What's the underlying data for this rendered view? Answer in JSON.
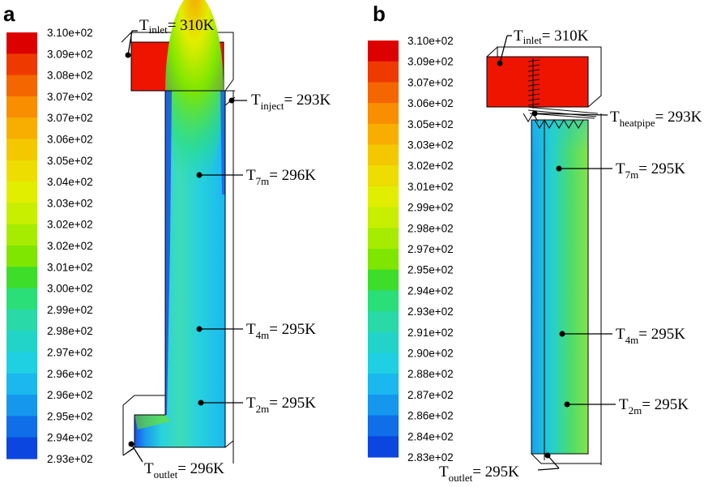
{
  "figure": {
    "panel_a": {
      "label": "a",
      "legend": {
        "ticks": [
          "3.10e+02",
          "3.09e+02",
          "3.08e+02",
          "3.07e+02",
          "3.07e+02",
          "3.06e+02",
          "3.05e+02",
          "3.04e+02",
          "3.03e+02",
          "3.02e+02",
          "3.02e+02",
          "3.01e+02",
          "3.00e+02",
          "2.99e+02",
          "2.98e+02",
          "2.97e+02",
          "2.96e+02",
          "2.96e+02",
          "2.95e+02",
          "2.94e+02",
          "2.93e+02"
        ]
      },
      "annotations": [
        {
          "id": "inlet",
          "main": "T",
          "sub": "inlet",
          "rest": "= 310K"
        },
        {
          "id": "inject",
          "main": "T",
          "sub": "inject",
          "rest": "= 293K"
        },
        {
          "id": "7m",
          "main": "T",
          "sub": "7m",
          "rest": "= 296K"
        },
        {
          "id": "4m",
          "main": "T",
          "sub": "4m",
          "rest": "= 295K"
        },
        {
          "id": "2m",
          "main": "T",
          "sub": "2m",
          "rest": "= 295K"
        },
        {
          "id": "outlet",
          "main": "T",
          "sub": "outlet",
          "rest": "= 296K"
        }
      ]
    },
    "panel_b": {
      "label": "b",
      "legend": {
        "ticks": [
          "3.10e+02",
          "3.09e+02",
          "3.07e+02",
          "3.06e+02",
          "3.05e+02",
          "3.03e+02",
          "3.02e+02",
          "3.01e+02",
          "2.99e+02",
          "2.98e+02",
          "2.97e+02",
          "2.95e+02",
          "2.94e+02",
          "2.93e+02",
          "2.91e+02",
          "2.90e+02",
          "2.88e+02",
          "2.87e+02",
          "2.86e+02",
          "2.84e+02",
          "2.83e+02"
        ]
      },
      "annotations": [
        {
          "id": "inlet",
          "main": "T",
          "sub": "inlet",
          "rest": "= 310K"
        },
        {
          "id": "heatpipe",
          "main": "T",
          "sub": "heatpipe",
          "rest": "= 293K"
        },
        {
          "id": "7m",
          "main": "T",
          "sub": "7m",
          "rest": "= 295K"
        },
        {
          "id": "4m",
          "main": "T",
          "sub": "4m",
          "rest": "= 295K"
        },
        {
          "id": "2m",
          "main": "T",
          "sub": "2m",
          "rest": "= 295K"
        },
        {
          "id": "outlet",
          "main": "T",
          "sub": "outlet",
          "rest": "= 295K"
        }
      ]
    },
    "colors": {
      "scale": [
        "#dd0000",
        "#ee3a00",
        "#f46600",
        "#f88e00",
        "#f8ae00",
        "#f4c800",
        "#eedd00",
        "#e2ee00",
        "#c8ee00",
        "#a6ec00",
        "#7ee600",
        "#3ddd2a",
        "#2ade78",
        "#2ad9a8",
        "#22d4c8",
        "#1ed0e2",
        "#1ab8ef",
        "#1597ee",
        "#0f6ee8",
        "#0b46e0",
        "#0716d0"
      ]
    }
  }
}
